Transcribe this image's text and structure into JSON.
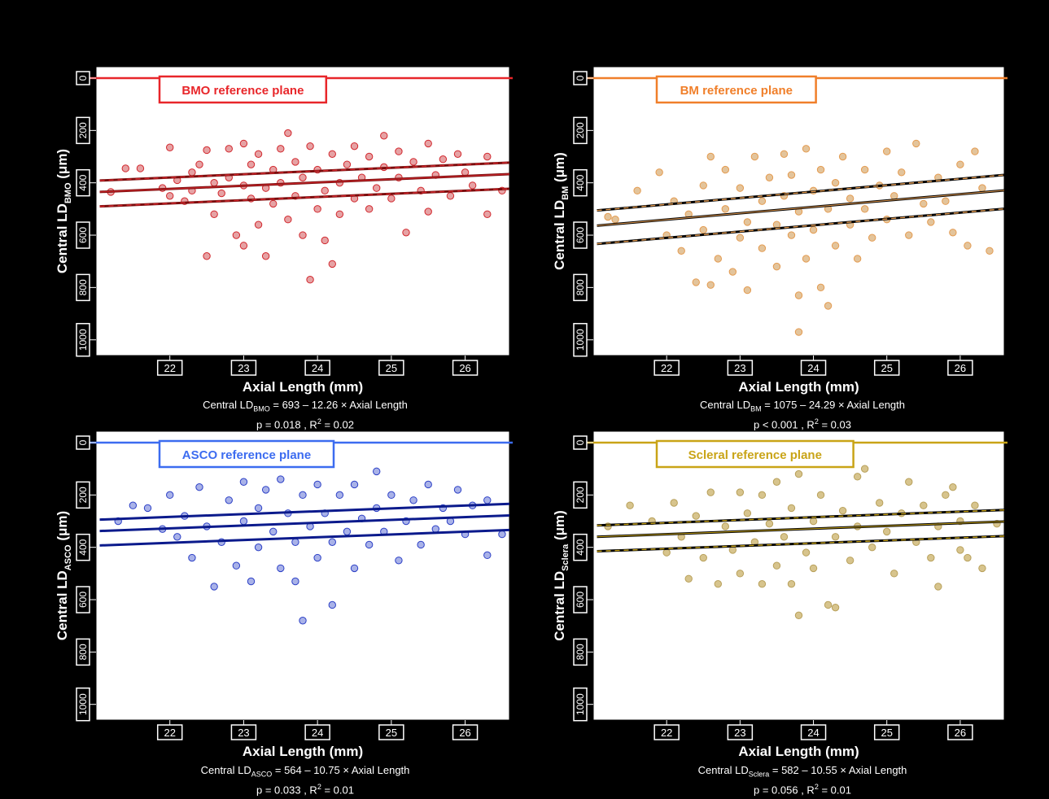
{
  "chart_data": [
    {
      "type": "scatter",
      "title": "BMO reference plane",
      "color": "#e8262a",
      "point_fill": "#e6a2a4",
      "point_stroke": "#d2272d",
      "line_color": "#7a0d0d",
      "dash_color": "#d2272d",
      "xlabel": "Axial Length (mm)",
      "ylabel": {
        "main": "Central LD",
        "sub": "BMO",
        "unit": " (μm)"
      },
      "xticks": [
        "22",
        "23",
        "24",
        "25",
        "26"
      ],
      "yticks": [
        "0",
        "200",
        "400",
        "600",
        "800",
        "1000"
      ],
      "xlim": [
        21.0,
        26.6
      ],
      "ylim": [
        0,
        1060
      ],
      "y_reversed": true,
      "regression": {
        "intercept": 693,
        "slope": -12.26,
        "ci_lower_offset": 30,
        "ci_upper_offset": 38
      },
      "equation": {
        "prefix": "Central  LD",
        "sub": "BMO",
        "rest": " = 693 – 12.26 × Axial Length"
      },
      "stats": {
        "p": "p = 0.018 , R",
        "sup": "2",
        "rest": " = 0.02"
      },
      "points": [
        [
          21.2,
          435
        ],
        [
          21.4,
          345
        ],
        [
          21.6,
          345
        ],
        [
          21.9,
          420
        ],
        [
          22.0,
          265
        ],
        [
          22.0,
          450
        ],
        [
          22.1,
          390
        ],
        [
          22.2,
          470
        ],
        [
          22.3,
          430
        ],
        [
          22.3,
          360
        ],
        [
          22.4,
          330
        ],
        [
          22.5,
          275
        ],
        [
          22.5,
          680
        ],
        [
          22.6,
          400
        ],
        [
          22.6,
          520
        ],
        [
          22.7,
          440
        ],
        [
          22.8,
          270
        ],
        [
          22.8,
          380
        ],
        [
          22.9,
          600
        ],
        [
          23.0,
          250
        ],
        [
          23.0,
          410
        ],
        [
          23.0,
          640
        ],
        [
          23.1,
          330
        ],
        [
          23.1,
          460
        ],
        [
          23.2,
          560
        ],
        [
          23.2,
          290
        ],
        [
          23.3,
          420
        ],
        [
          23.3,
          680
        ],
        [
          23.4,
          350
        ],
        [
          23.4,
          480
        ],
        [
          23.5,
          270
        ],
        [
          23.5,
          400
        ],
        [
          23.6,
          210
        ],
        [
          23.6,
          540
        ],
        [
          23.7,
          320
        ],
        [
          23.7,
          450
        ],
        [
          23.8,
          600
        ],
        [
          23.8,
          380
        ],
        [
          23.9,
          260
        ],
        [
          23.9,
          770
        ],
        [
          24.0,
          500
        ],
        [
          24.0,
          350
        ],
        [
          24.1,
          430
        ],
        [
          24.1,
          620
        ],
        [
          24.2,
          290
        ],
        [
          24.2,
          710
        ],
        [
          24.3,
          400
        ],
        [
          24.3,
          520
        ],
        [
          24.4,
          330
        ],
        [
          24.5,
          460
        ],
        [
          24.5,
          260
        ],
        [
          24.6,
          380
        ],
        [
          24.7,
          500
        ],
        [
          24.7,
          300
        ],
        [
          24.8,
          420
        ],
        [
          24.9,
          220
        ],
        [
          24.9,
          340
        ],
        [
          25.0,
          460
        ],
        [
          25.1,
          280
        ],
        [
          25.1,
          380
        ],
        [
          25.2,
          590
        ],
        [
          25.3,
          320
        ],
        [
          25.4,
          430
        ],
        [
          25.5,
          250
        ],
        [
          25.5,
          510
        ],
        [
          25.6,
          370
        ],
        [
          25.7,
          310
        ],
        [
          25.8,
          450
        ],
        [
          25.9,
          290
        ],
        [
          26.0,
          360
        ],
        [
          26.1,
          410
        ],
        [
          26.3,
          520
        ],
        [
          26.3,
          300
        ],
        [
          26.5,
          430
        ]
      ]
    },
    {
      "type": "scatter",
      "title": "BM reference plane",
      "color": "#f07f2a",
      "point_fill": "#e3c49b",
      "point_stroke": "#e49b50",
      "line_color": "#000000",
      "dash_color": "#e49b50",
      "xlabel": "Axial Length (mm)",
      "ylabel": {
        "main": "Central LD",
        "sub": "BM",
        "unit": " (μm)"
      },
      "xticks": [
        "22",
        "23",
        "24",
        "25",
        "26"
      ],
      "yticks": [
        "0",
        "200",
        "400",
        "600",
        "800",
        "1000"
      ],
      "xlim": [
        21.0,
        26.6
      ],
      "ylim": [
        0,
        1060
      ],
      "y_reversed": true,
      "regression": {
        "intercept": 1075,
        "slope": -24.29,
        "ci_lower_offset": 40,
        "ci_upper_offset": 48
      },
      "equation": {
        "prefix": "Central  LD",
        "sub": "BM",
        "rest": " = 1075 – 24.29 × Axial Length"
      },
      "stats": {
        "p": "p < 0.001 , R",
        "sup": "2",
        "rest": " = 0.03"
      },
      "points": [
        [
          21.2,
          530
        ],
        [
          21.6,
          430
        ],
        [
          21.9,
          360
        ],
        [
          22.0,
          600
        ],
        [
          22.1,
          470
        ],
        [
          22.2,
          660
        ],
        [
          22.3,
          520
        ],
        [
          22.4,
          780
        ],
        [
          22.5,
          410
        ],
        [
          22.5,
          580
        ],
        [
          22.6,
          300
        ],
        [
          22.7,
          690
        ],
        [
          22.8,
          500
        ],
        [
          22.8,
          350
        ],
        [
          22.9,
          740
        ],
        [
          23.0,
          610
        ],
        [
          23.0,
          420
        ],
        [
          23.1,
          810
        ],
        [
          23.1,
          550
        ],
        [
          23.2,
          300
        ],
        [
          23.3,
          470
        ],
        [
          23.3,
          650
        ],
        [
          23.4,
          380
        ],
        [
          23.5,
          560
        ],
        [
          23.5,
          720
        ],
        [
          23.6,
          290
        ],
        [
          23.6,
          450
        ],
        [
          23.7,
          600
        ],
        [
          23.7,
          370
        ],
        [
          23.8,
          830
        ],
        [
          23.8,
          510
        ],
        [
          23.9,
          270
        ],
        [
          23.9,
          690
        ],
        [
          24.0,
          430
        ],
        [
          24.0,
          580
        ],
        [
          24.1,
          800
        ],
        [
          24.1,
          350
        ],
        [
          24.2,
          870
        ],
        [
          24.2,
          500
        ],
        [
          24.3,
          640
        ],
        [
          24.3,
          400
        ],
        [
          24.4,
          300
        ],
        [
          24.5,
          560
        ],
        [
          24.5,
          460
        ],
        [
          24.6,
          690
        ],
        [
          24.7,
          350
        ],
        [
          24.7,
          500
        ],
        [
          24.8,
          610
        ],
        [
          24.9,
          410
        ],
        [
          25.0,
          280
        ],
        [
          25.0,
          540
        ],
        [
          25.1,
          450
        ],
        [
          25.2,
          360
        ],
        [
          25.3,
          600
        ],
        [
          25.4,
          250
        ],
        [
          25.5,
          480
        ],
        [
          25.6,
          550
        ],
        [
          25.7,
          380
        ],
        [
          25.8,
          470
        ],
        [
          25.9,
          590
        ],
        [
          26.0,
          330
        ],
        [
          26.1,
          640
        ],
        [
          26.2,
          280
        ],
        [
          26.3,
          420
        ],
        [
          26.4,
          660
        ],
        [
          21.3,
          540
        ],
        [
          23.8,
          970
        ],
        [
          22.6,
          790
        ]
      ]
    },
    {
      "type": "scatter",
      "title": "ASCO reference plane",
      "color": "#3c6cf0",
      "point_fill": "#a9b2e8",
      "point_stroke": "#2b3fc6",
      "line_color": "#0b1a8c",
      "dash_color": "#0b1a8c",
      "xlabel": "Axial Length (mm)",
      "ylabel": {
        "main": "Central LD",
        "sub": "ASCO",
        "unit": " (μm)"
      },
      "xticks": [
        "22",
        "23",
        "24",
        "25",
        "26"
      ],
      "yticks": [
        "0",
        "200",
        "400",
        "600",
        "800",
        "1000"
      ],
      "xlim": [
        21.0,
        26.6
      ],
      "ylim": [
        0,
        1060
      ],
      "y_reversed": true,
      "regression": {
        "intercept": 564,
        "slope": -10.75,
        "ci_lower_offset": 30,
        "ci_upper_offset": 38
      },
      "equation": {
        "prefix": "Central  LD",
        "sub": "ASCO",
        "rest": " = 564 – 10.75 × Axial Length"
      },
      "stats": {
        "p": "p = 0.033 , R",
        "sup": "2",
        "rest": " = 0.01"
      },
      "points": [
        [
          21.3,
          300
        ],
        [
          21.5,
          240
        ],
        [
          21.7,
          250
        ],
        [
          21.9,
          330
        ],
        [
          22.0,
          200
        ],
        [
          22.1,
          360
        ],
        [
          22.2,
          280
        ],
        [
          22.3,
          440
        ],
        [
          22.4,
          170
        ],
        [
          22.5,
          320
        ],
        [
          22.6,
          550
        ],
        [
          22.7,
          380
        ],
        [
          22.8,
          220
        ],
        [
          22.9,
          470
        ],
        [
          23.0,
          150
        ],
        [
          23.0,
          300
        ],
        [
          23.1,
          530
        ],
        [
          23.2,
          250
        ],
        [
          23.2,
          400
        ],
        [
          23.3,
          180
        ],
        [
          23.4,
          340
        ],
        [
          23.5,
          140
        ],
        [
          23.5,
          480
        ],
        [
          23.6,
          270
        ],
        [
          23.7,
          380
        ],
        [
          23.7,
          530
        ],
        [
          23.8,
          200
        ],
        [
          23.8,
          680
        ],
        [
          23.9,
          320
        ],
        [
          24.0,
          440
        ],
        [
          24.0,
          160
        ],
        [
          24.1,
          270
        ],
        [
          24.2,
          620
        ],
        [
          24.2,
          380
        ],
        [
          24.3,
          200
        ],
        [
          24.4,
          340
        ],
        [
          24.5,
          160
        ],
        [
          24.5,
          480
        ],
        [
          24.6,
          290
        ],
        [
          24.7,
          390
        ],
        [
          24.8,
          110
        ],
        [
          24.8,
          250
        ],
        [
          24.9,
          340
        ],
        [
          25.0,
          200
        ],
        [
          25.1,
          450
        ],
        [
          25.2,
          300
        ],
        [
          25.3,
          220
        ],
        [
          25.4,
          390
        ],
        [
          25.5,
          160
        ],
        [
          25.6,
          330
        ],
        [
          25.7,
          250
        ],
        [
          25.8,
          300
        ],
        [
          25.9,
          180
        ],
        [
          26.0,
          350
        ],
        [
          26.1,
          240
        ],
        [
          26.3,
          430
        ],
        [
          26.3,
          220
        ],
        [
          26.5,
          350
        ]
      ]
    },
    {
      "type": "scatter",
      "title": "Scleral reference plane",
      "color": "#c9a417",
      "point_fill": "#d7c48d",
      "point_stroke": "#b8a05a",
      "line_color": "#000000",
      "dash_color": "#c9a417",
      "xlabel": "Axial Length (mm)",
      "ylabel": {
        "main": "Central LD",
        "sub": "Sclera",
        "unit": " (μm)"
      },
      "xticks": [
        "22",
        "23",
        "24",
        "25",
        "26"
      ],
      "yticks": [
        "0",
        "200",
        "400",
        "600",
        "800",
        "1000"
      ],
      "xlim": [
        21.0,
        26.6
      ],
      "ylim": [
        0,
        1060
      ],
      "y_reversed": true,
      "regression": {
        "intercept": 582,
        "slope": -10.55,
        "ci_lower_offset": 30,
        "ci_upper_offset": 38
      },
      "equation": {
        "prefix": "Central  LD",
        "sub": "Sclera",
        "rest": " = 582 – 10.55 × Axial Length"
      },
      "stats": {
        "p": "p = 0.056 , R",
        "sup": "2",
        "rest": " = 0.01"
      },
      "points": [
        [
          21.2,
          320
        ],
        [
          21.5,
          240
        ],
        [
          21.8,
          300
        ],
        [
          22.0,
          420
        ],
        [
          22.1,
          230
        ],
        [
          22.2,
          360
        ],
        [
          22.3,
          520
        ],
        [
          22.4,
          280
        ],
        [
          22.5,
          440
        ],
        [
          22.6,
          190
        ],
        [
          22.7,
          540
        ],
        [
          22.8,
          320
        ],
        [
          22.9,
          410
        ],
        [
          23.0,
          190
        ],
        [
          23.0,
          500
        ],
        [
          23.1,
          270
        ],
        [
          23.2,
          380
        ],
        [
          23.3,
          540
        ],
        [
          23.3,
          200
        ],
        [
          23.4,
          310
        ],
        [
          23.5,
          470
        ],
        [
          23.5,
          150
        ],
        [
          23.6,
          360
        ],
        [
          23.7,
          250
        ],
        [
          23.7,
          540
        ],
        [
          23.8,
          120
        ],
        [
          23.8,
          660
        ],
        [
          23.9,
          420
        ],
        [
          24.0,
          300
        ],
        [
          24.0,
          480
        ],
        [
          24.1,
          200
        ],
        [
          24.2,
          620
        ],
        [
          24.3,
          630
        ],
        [
          24.3,
          360
        ],
        [
          24.4,
          260
        ],
        [
          24.5,
          450
        ],
        [
          24.6,
          130
        ],
        [
          24.6,
          320
        ],
        [
          24.7,
          100
        ],
        [
          24.8,
          400
        ],
        [
          24.9,
          230
        ],
        [
          25.0,
          340
        ],
        [
          25.1,
          500
        ],
        [
          25.2,
          270
        ],
        [
          25.3,
          150
        ],
        [
          25.4,
          380
        ],
        [
          25.5,
          240
        ],
        [
          25.6,
          440
        ],
        [
          25.7,
          320
        ],
        [
          25.8,
          200
        ],
        [
          25.9,
          170
        ],
        [
          26.0,
          410
        ],
        [
          26.0,
          300
        ],
        [
          26.1,
          440
        ],
        [
          26.2,
          240
        ],
        [
          26.3,
          480
        ],
        [
          25.7,
          550
        ],
        [
          26.5,
          310
        ]
      ]
    }
  ]
}
